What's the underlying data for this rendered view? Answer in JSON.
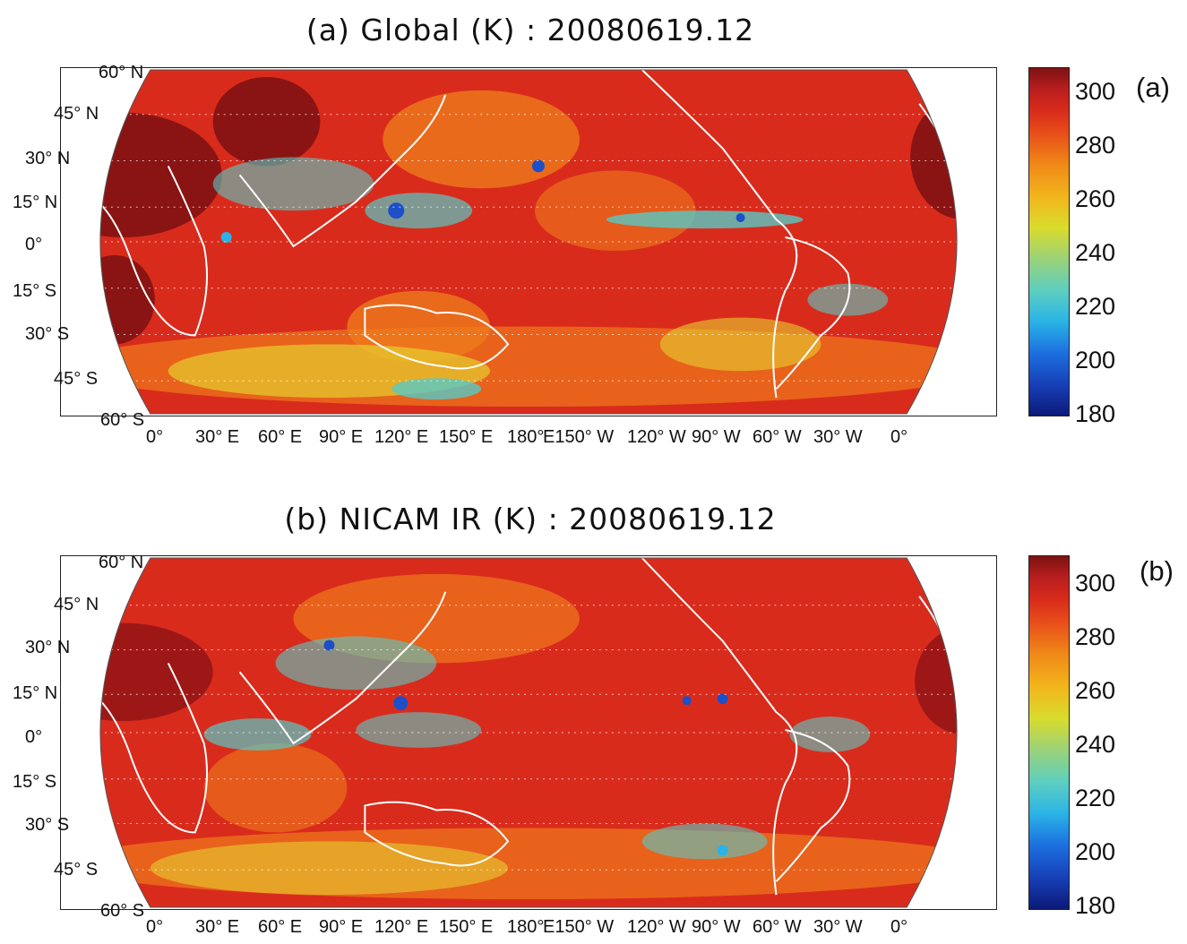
{
  "panels": [
    {
      "title": "(a) Global (K) : 20080619.12",
      "letter": "(a)"
    },
    {
      "title": "(b) NICAM IR (K) : 20080619.12",
      "letter": "(b)"
    }
  ],
  "lat_labels": [
    "60° N",
    "45° N",
    "30° N",
    "15° N",
    "0°",
    "15° S",
    "30° S",
    "45° S",
    "60° S"
  ],
  "lon_labels": [
    "0°",
    "30° E",
    "60° E",
    "90° E",
    "120° E",
    "150° E",
    "180°",
    "E150° W",
    "120° W",
    "90° W",
    "60° W",
    "30° W",
    "0°"
  ],
  "colorbar": {
    "ticks": [
      "300",
      "280",
      "260",
      "240",
      "220",
      "200",
      "180"
    ],
    "range": [
      180,
      310
    ]
  },
  "colors": {
    "warm_dark": "#8a1414",
    "warm": "#d92b1c",
    "orange": "#ee7a1c",
    "yellow": "#e6cf2e",
    "cyan": "#58c9c4",
    "blue": "#1c4fc8",
    "coastline": "#ffffff"
  }
}
